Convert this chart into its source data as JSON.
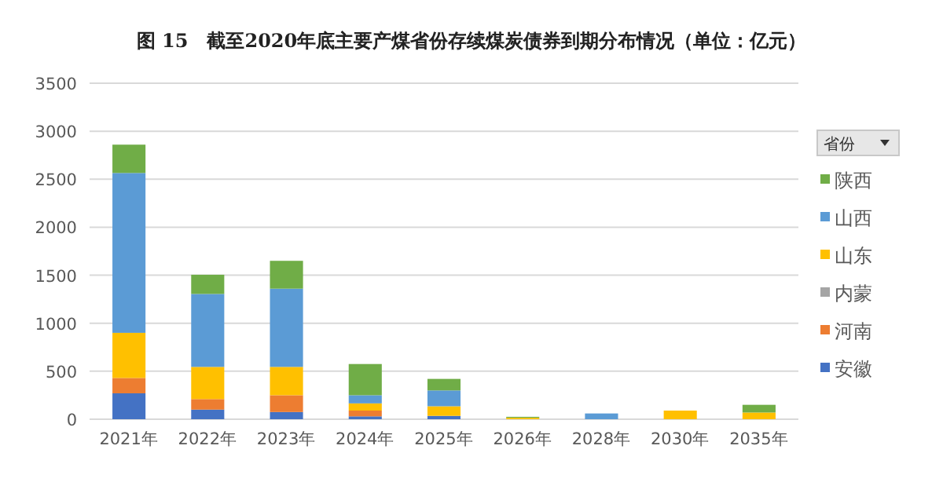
{
  "chart_data": {
    "type": "bar",
    "stacked": true,
    "title": "图 15　截至2020年底主要产煤省份存续煤炭债券到期分布情况（单位：亿元）",
    "legend_title": "省份",
    "legend": "right",
    "grid": "y",
    "categories": [
      "2021年",
      "2022年",
      "2023年",
      "2024年",
      "2025年",
      "2026年",
      "2028年",
      "2030年",
      "2035年"
    ],
    "ylim": [
      0,
      3500
    ],
    "yticks": [
      0,
      500,
      1000,
      1500,
      2000,
      2500,
      3000,
      3500
    ],
    "series": [
      {
        "name": "安徽",
        "color": "#4472c4",
        "values": [
          270,
          100,
          75,
          30,
          35,
          0,
          0,
          0,
          0
        ]
      },
      {
        "name": "河南",
        "color": "#ed7d31",
        "values": [
          160,
          110,
          175,
          60,
          0,
          0,
          0,
          0,
          0
        ]
      },
      {
        "name": "内蒙",
        "color": "#a5a5a5",
        "values": [
          0,
          0,
          0,
          0,
          0,
          0,
          0,
          0,
          0
        ]
      },
      {
        "name": "山东",
        "color": "#ffc000",
        "values": [
          470,
          335,
          295,
          75,
          100,
          15,
          0,
          90,
          70
        ]
      },
      {
        "name": "山西",
        "color": "#5b9bd5",
        "values": [
          1665,
          760,
          815,
          85,
          165,
          0,
          60,
          0,
          0
        ]
      },
      {
        "name": "陕西",
        "color": "#70ad47",
        "values": [
          295,
          200,
          290,
          325,
          120,
          10,
          0,
          0,
          80
        ]
      }
    ]
  }
}
